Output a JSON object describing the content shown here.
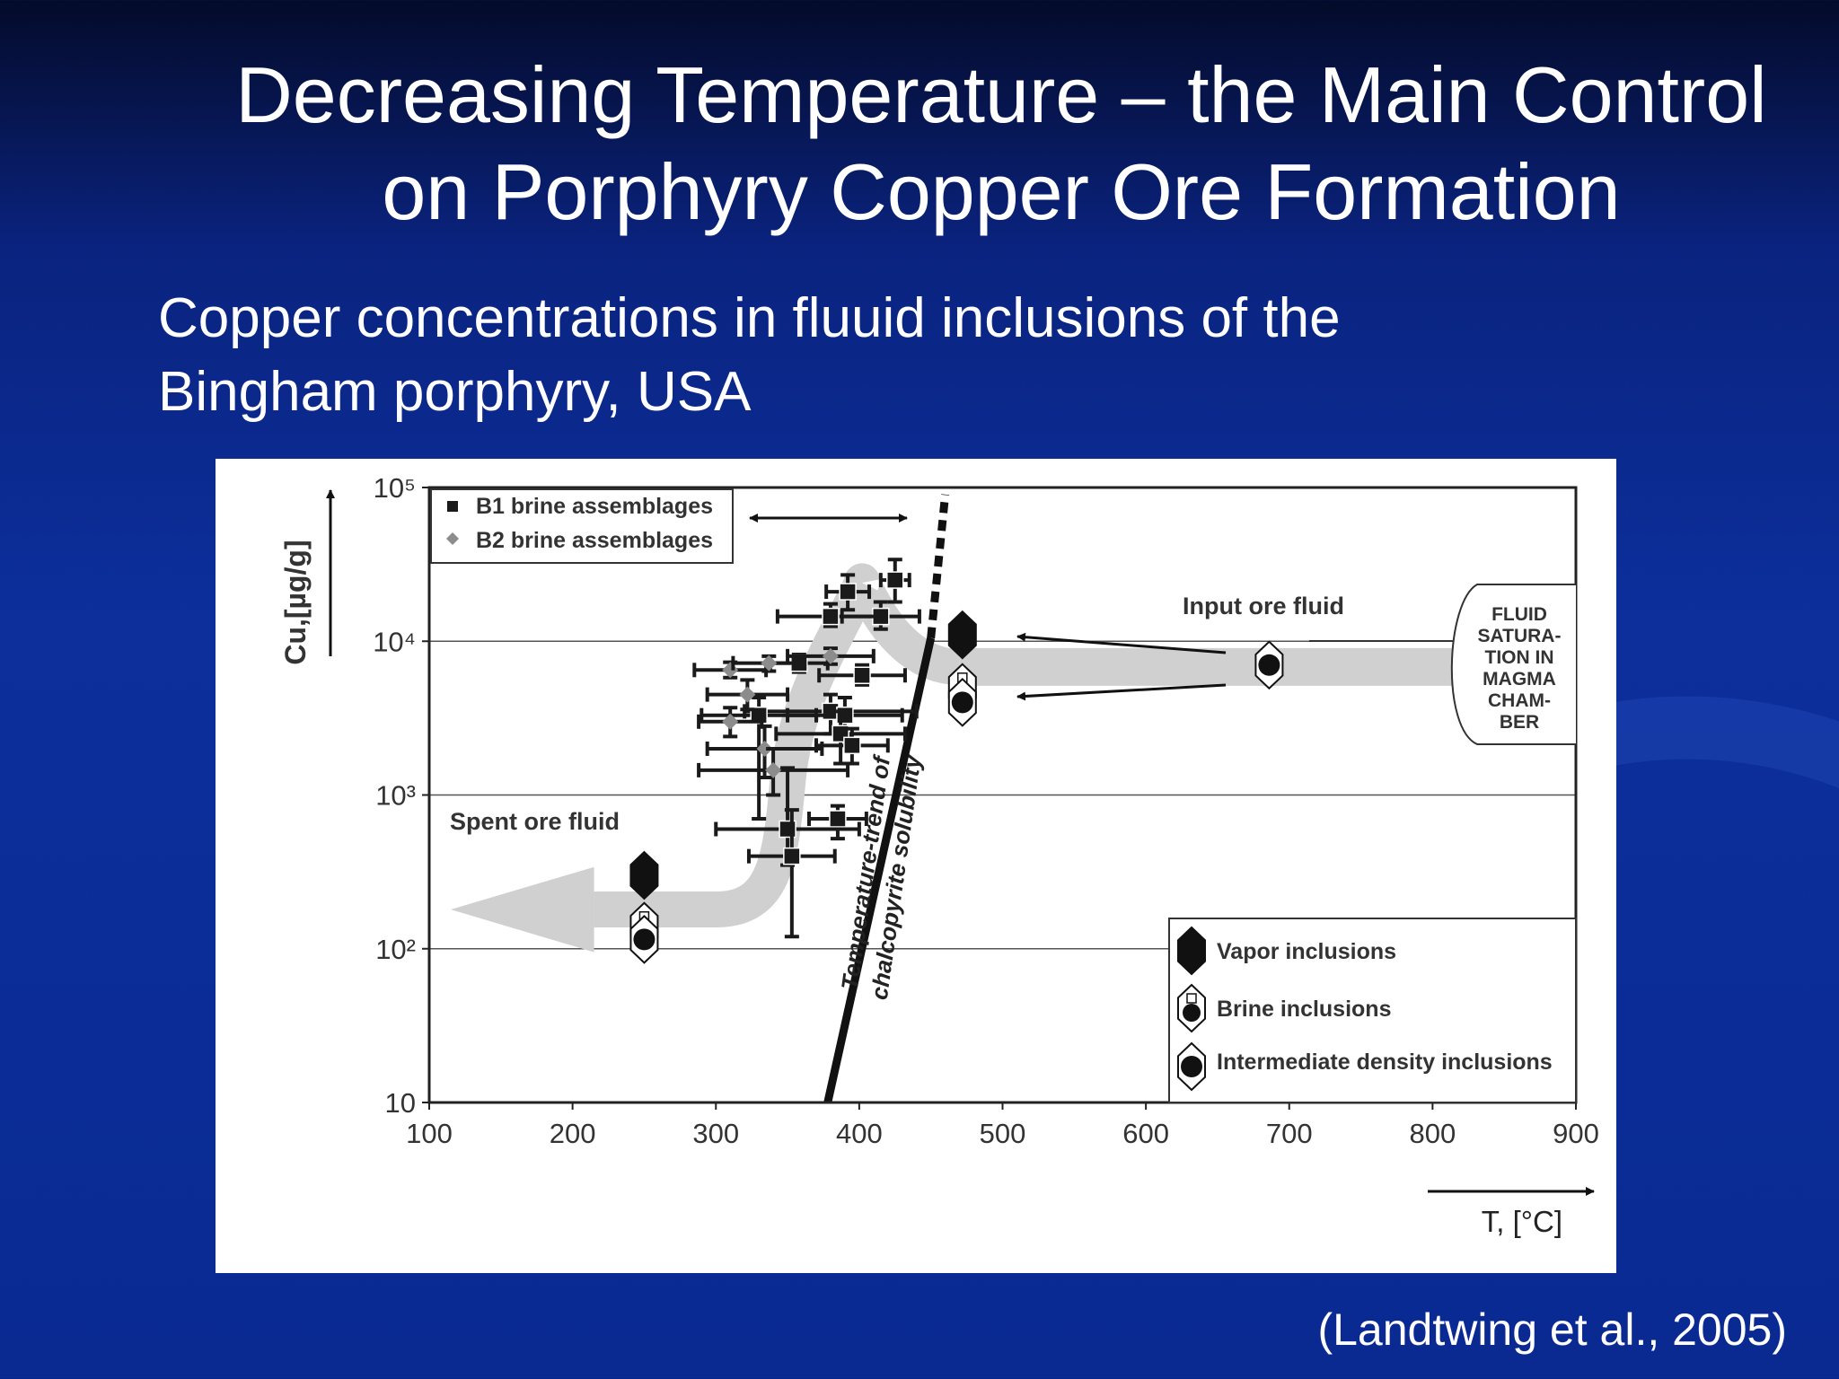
{
  "slide": {
    "title_line1": "Decreasing Temperature – the Main Control",
    "title_line2": "on Porphyry Copper Ore Formation",
    "subtitle_line1": "Copper concentrations in fluuid inclusions of the",
    "subtitle_line2": "Bingham porphyry, USA",
    "citation": "(Landtwing et al., 2005)"
  },
  "chart_data": {
    "type": "scatter",
    "xlabel": "T, [°C]",
    "ylabel": "Cu,[µg/g]",
    "xlim": [
      100,
      900
    ],
    "ylim": [
      10,
      100000
    ],
    "y_scale": "log",
    "x_ticks": [
      "100",
      "200",
      "300",
      "400",
      "500",
      "600",
      "700",
      "800",
      "900"
    ],
    "y_ticks": [
      "10",
      "10²",
      "10³",
      "10⁴",
      "10⁵"
    ],
    "legend_top": [
      "B1 brine assemblages",
      "B2 brine assemblages"
    ],
    "legend_bottom": [
      "Vapor inclusions",
      "Brine inclusions",
      "Intermediate density inclusions"
    ],
    "annotations": {
      "input": "Input ore fluid",
      "spent": "Spent ore fluid",
      "trend_line1": "Temperature-trend of",
      "trend_line2": "chalcopyrite solubility",
      "fluid_box": [
        "FLUID",
        "SATURA-",
        "TION IN",
        "MAGMA",
        "CHAM-",
        "BER"
      ]
    },
    "series": [
      {
        "name": "B1 brine assemblages",
        "marker": "square",
        "color": "#1a1a1a",
        "points": [
          {
            "x": 425,
            "y": 25000,
            "xerr": 10,
            "yerr_lo": 18000,
            "yerr_hi": 34000
          },
          {
            "x": 392,
            "y": 21000,
            "xerr": 15,
            "yerr_lo": 16000,
            "yerr_hi": 27000
          },
          {
            "x": 415,
            "y": 14500,
            "xerr": 27,
            "yerr_lo": 12000,
            "yerr_hi": 18000
          },
          {
            "x": 380,
            "y": 14500,
            "xerr": 37,
            "yerr_lo": 12500,
            "yerr_hi": 17500
          },
          {
            "x": 402,
            "y": 6000,
            "xerr": 30,
            "yerr_lo": 5200,
            "yerr_hi": 7000
          },
          {
            "x": 358,
            "y": 7200,
            "xerr": 20,
            "yerr_lo": 6300,
            "yerr_hi": 8200
          },
          {
            "x": 380,
            "y": 3500,
            "xerr": 60,
            "yerr_lo": 2500,
            "yerr_hi": 4500
          },
          {
            "x": 390,
            "y": 3300,
            "xerr": 40,
            "yerr_lo": 2400,
            "yerr_hi": 4300
          },
          {
            "x": 387,
            "y": 2500,
            "xerr": 45,
            "yerr_lo": 1600,
            "yerr_hi": 3500
          },
          {
            "x": 395,
            "y": 2100,
            "xerr": 25,
            "yerr_lo": 1600,
            "yerr_hi": 2700
          },
          {
            "x": 385,
            "y": 700,
            "xerr": 20,
            "yerr_lo": 520,
            "yerr_hi": 850
          },
          {
            "x": 350,
            "y": 600,
            "xerr": 50,
            "yerr_lo": 350,
            "yerr_hi": 1500
          },
          {
            "x": 353,
            "y": 400,
            "xerr": 30,
            "yerr_lo": 120,
            "yerr_hi": 800
          },
          {
            "x": 330,
            "y": 3300,
            "xerr": 40,
            "yerr_lo": 700,
            "yerr_hi": 4300
          }
        ]
      },
      {
        "name": "B2 brine assemblages",
        "marker": "diamond",
        "color": "#8c8c8c",
        "points": [
          {
            "x": 310,
            "y": 6500,
            "xerr": 25,
            "yerr_lo": 5800,
            "yerr_hi": 7300
          },
          {
            "x": 337,
            "y": 7200,
            "xerr": 25,
            "yerr_lo": 6400,
            "yerr_hi": 8000
          },
          {
            "x": 380,
            "y": 8000,
            "xerr": 30,
            "yerr_lo": 7100,
            "yerr_hi": 9000
          },
          {
            "x": 322,
            "y": 4500,
            "xerr": 28,
            "yerr_lo": 3600,
            "yerr_hi": 5600
          },
          {
            "x": 310,
            "y": 3000,
            "xerr": 22,
            "yerr_lo": 2400,
            "yerr_hi": 3700
          },
          {
            "x": 334,
            "y": 2000,
            "xerr": 40,
            "yerr_lo": 1300,
            "yerr_hi": 2800
          },
          {
            "x": 340,
            "y": 1450,
            "xerr": 52,
            "yerr_lo": 1000,
            "yerr_hi": 2000
          }
        ]
      },
      {
        "name": "Vapor inclusions",
        "marker": "hexagon-filled",
        "points": [
          {
            "x": 250,
            "y": 300
          },
          {
            "x": 472,
            "y": 11000
          }
        ]
      },
      {
        "name": "Brine inclusions",
        "marker": "hexagon-brine",
        "points": [
          {
            "x": 250,
            "y": 140
          },
          {
            "x": 472,
            "y": 5000
          }
        ]
      },
      {
        "name": "Intermediate density inclusions",
        "marker": "hexagon-dot",
        "points": [
          {
            "x": 250,
            "y": 115
          },
          {
            "x": 472,
            "y": 4000
          },
          {
            "x": 686,
            "y": 7000
          }
        ]
      }
    ]
  }
}
